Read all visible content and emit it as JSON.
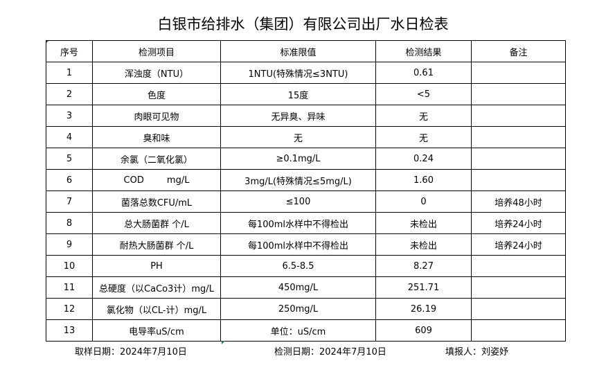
{
  "title": "白银市给排水（集团）有限公司出厂水日检表",
  "table": {
    "headers": [
      "序号",
      "检测项目",
      "标准限值",
      "检测结果",
      "备注"
    ],
    "rows": [
      [
        "1",
        "浑浊度（NTU）",
        "1NTU(特殊情况≤3NTU)",
        "0.61",
        ""
      ],
      [
        "2",
        "色度",
        "15度",
        "<5",
        ""
      ],
      [
        "3",
        "肉眼可见物",
        "无异臭、异味",
        "无",
        ""
      ],
      [
        "4",
        "臭和味",
        "无",
        "无",
        ""
      ],
      [
        "5",
        "余氯（二氧化氯）",
        "≥0.1mg/L",
        "0.24",
        ""
      ],
      [
        "6",
        "COD        mg/L",
        "3mg/L(特殊情况≤5mg/L)",
        "1.60",
        ""
      ],
      [
        "7",
        "菌落总数CFU/mL",
        "≤100",
        "0",
        "培养48小时"
      ],
      [
        "8",
        "总大肠菌群 个/L",
        "每100ml水样中不得检出",
        "未检出",
        "培养24小时"
      ],
      [
        "9",
        "耐热大肠菌群 个/L",
        "每100ml水样中不得检出",
        "未检出",
        "培养24小时"
      ],
      [
        "10",
        "PH",
        "6.5-8.5",
        "8.27",
        ""
      ],
      [
        "11",
        "总硬度（以CaCo3计）mg/L",
        "450mg/L",
        "251.71",
        ""
      ],
      [
        "12",
        "氯化物（以CL-计）mg/L",
        "250mg/L",
        "26.19",
        ""
      ],
      [
        "13",
        "电导率uS/cm",
        "单位：uS/cm",
        "609",
        ""
      ]
    ]
  },
  "footer": {
    "sampling_date": "取样日期：2024年7月10日",
    "test_date": "检测日期：2024年7月10日",
    "reporter": "填报人：刘姿妤"
  },
  "colors": {
    "cell_marker": "#217346",
    "border": "#000000"
  }
}
